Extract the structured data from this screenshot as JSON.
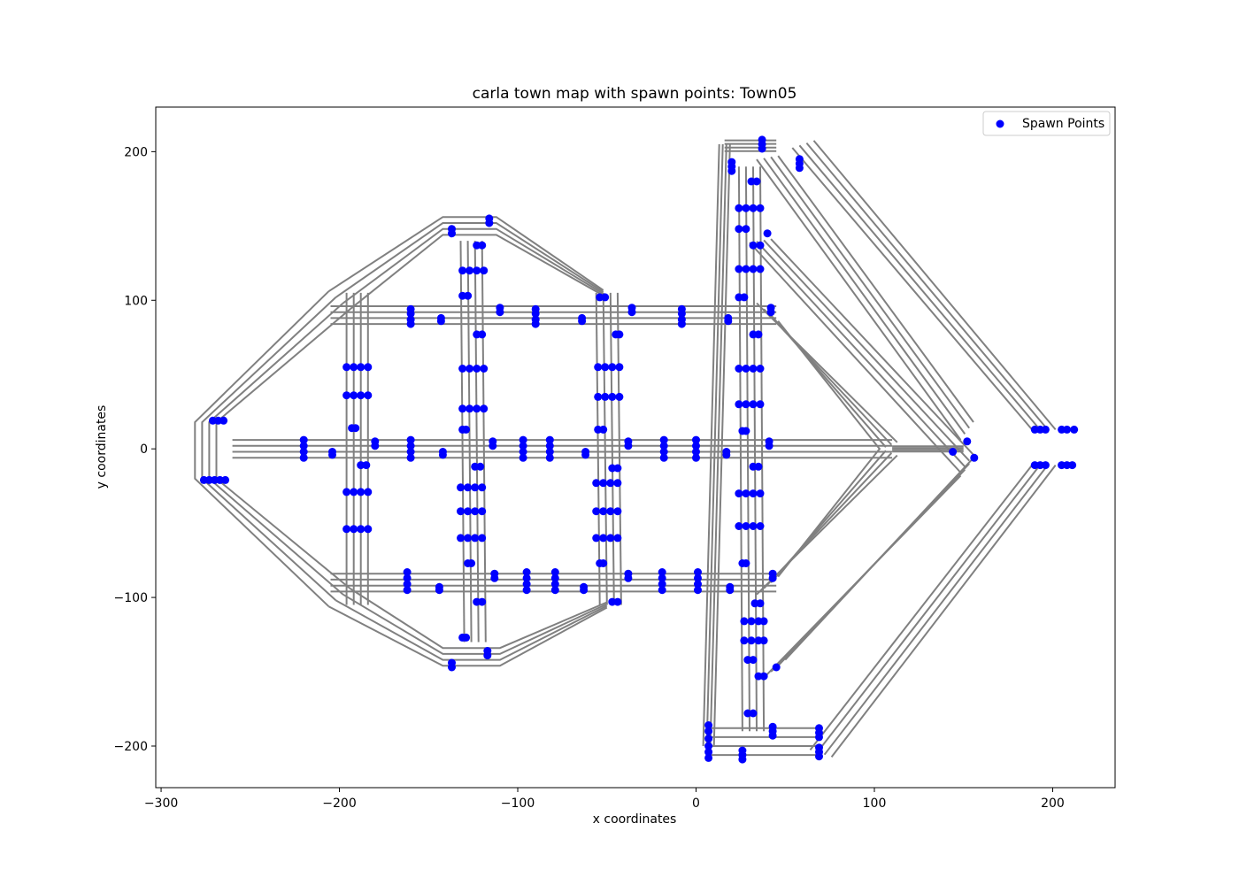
{
  "chart_data": {
    "type": "scatter",
    "title": "carla town map with spawn points: Town05",
    "xlabel": "x coordinates",
    "ylabel": "y coordinates",
    "xlim": [
      -303,
      235
    ],
    "ylim": [
      -228,
      230
    ],
    "xticks": [
      -300,
      -200,
      -100,
      0,
      100,
      200
    ],
    "yticks": [
      -200,
      -100,
      0,
      100,
      200
    ],
    "grid": false,
    "legend_position": "top-right",
    "colors": {
      "roads": "#808080",
      "spawn_points": "#0000ff"
    },
    "legend": [
      {
        "label": "Spawn Points",
        "color": "#0000ff",
        "marker": "circle"
      }
    ],
    "series": [
      {
        "name": "Spawn Points",
        "points": [
          [
            -271,
            19
          ],
          [
            -268,
            19
          ],
          [
            -265,
            19
          ],
          [
            -276,
            -21
          ],
          [
            -273,
            -21
          ],
          [
            -270,
            -21
          ],
          [
            -267,
            -21
          ],
          [
            -264,
            -21
          ],
          [
            -220,
            2
          ],
          [
            -220,
            6
          ],
          [
            -220,
            -2
          ],
          [
            -220,
            -6
          ],
          [
            -204,
            -2
          ],
          [
            -204,
            -4
          ],
          [
            -180,
            2
          ],
          [
            -180,
            5
          ],
          [
            -160,
            2
          ],
          [
            -160,
            6
          ],
          [
            -160,
            -2
          ],
          [
            -160,
            -6
          ],
          [
            -142,
            -2
          ],
          [
            -142,
            -4
          ],
          [
            -114,
            2
          ],
          [
            -114,
            5
          ],
          [
            -97,
            2
          ],
          [
            -97,
            6
          ],
          [
            -97,
            -2
          ],
          [
            -97,
            -6
          ],
          [
            -82,
            2
          ],
          [
            -82,
            6
          ],
          [
            -82,
            -2
          ],
          [
            -82,
            -6
          ],
          [
            -62,
            -2
          ],
          [
            -62,
            -4
          ],
          [
            -38,
            2
          ],
          [
            -38,
            5
          ],
          [
            -18,
            2
          ],
          [
            -18,
            6
          ],
          [
            -18,
            -2
          ],
          [
            -18,
            -6
          ],
          [
            0,
            2
          ],
          [
            0,
            6
          ],
          [
            0,
            -2
          ],
          [
            0,
            -6
          ],
          [
            17,
            -2
          ],
          [
            17,
            -4
          ],
          [
            41,
            2
          ],
          [
            41,
            5
          ],
          [
            144,
            -2
          ],
          [
            152,
            5
          ],
          [
            156,
            -6
          ],
          [
            -160,
            91
          ],
          [
            -160,
            87
          ],
          [
            -160,
            94
          ],
          [
            -160,
            84
          ],
          [
            -143,
            86
          ],
          [
            -143,
            88
          ],
          [
            -110,
            92
          ],
          [
            -110,
            95
          ],
          [
            -90,
            91
          ],
          [
            -90,
            87
          ],
          [
            -90,
            94
          ],
          [
            -90,
            84
          ],
          [
            -64,
            86
          ],
          [
            -64,
            88
          ],
          [
            -36,
            92
          ],
          [
            -36,
            95
          ],
          [
            -8,
            91
          ],
          [
            -8,
            87
          ],
          [
            -8,
            94
          ],
          [
            -8,
            84
          ],
          [
            18,
            86
          ],
          [
            18,
            88
          ],
          [
            42,
            92
          ],
          [
            42,
            95
          ],
          [
            -162,
            -87
          ],
          [
            -162,
            -91
          ],
          [
            -162,
            -95
          ],
          [
            -162,
            -83
          ],
          [
            -144,
            -93
          ],
          [
            -144,
            -95
          ],
          [
            -113,
            -87
          ],
          [
            -113,
            -84
          ],
          [
            -95,
            -87
          ],
          [
            -95,
            -91
          ],
          [
            -95,
            -95
          ],
          [
            -95,
            -83
          ],
          [
            -79,
            -87
          ],
          [
            -79,
            -91
          ],
          [
            -79,
            -95
          ],
          [
            -79,
            -83
          ],
          [
            -63,
            -93
          ],
          [
            -63,
            -95
          ],
          [
            -38,
            -87
          ],
          [
            -38,
            -84
          ],
          [
            -19,
            -87
          ],
          [
            -19,
            -91
          ],
          [
            -19,
            -95
          ],
          [
            -19,
            -83
          ],
          [
            1,
            -87
          ],
          [
            1,
            -91
          ],
          [
            1,
            -95
          ],
          [
            1,
            -83
          ],
          [
            19,
            -93
          ],
          [
            19,
            -95
          ],
          [
            43,
            -87
          ],
          [
            43,
            -84
          ],
          [
            -196,
            55
          ],
          [
            -192,
            55
          ],
          [
            -188,
            55
          ],
          [
            -184,
            55
          ],
          [
            -196,
            36
          ],
          [
            -192,
            36
          ],
          [
            -188,
            36
          ],
          [
            -184,
            36
          ],
          [
            -193,
            14
          ],
          [
            -191,
            14
          ],
          [
            -188,
            -11
          ],
          [
            -185,
            -11
          ],
          [
            -196,
            -29
          ],
          [
            -192,
            -29
          ],
          [
            -188,
            -29
          ],
          [
            -184,
            -29
          ],
          [
            -196,
            -54
          ],
          [
            -192,
            -54
          ],
          [
            -188,
            -54
          ],
          [
            -184,
            -54
          ],
          [
            -131,
            54
          ],
          [
            -127,
            54
          ],
          [
            -123,
            54
          ],
          [
            -119,
            54
          ],
          [
            -131,
            27
          ],
          [
            -127,
            27
          ],
          [
            -123,
            27
          ],
          [
            -119,
            27
          ],
          [
            -131,
            13
          ],
          [
            -129,
            13
          ],
          [
            -124,
            -12
          ],
          [
            -121,
            -12
          ],
          [
            -132,
            -26
          ],
          [
            -128,
            -26
          ],
          [
            -124,
            -26
          ],
          [
            -120,
            -26
          ],
          [
            -132,
            -42
          ],
          [
            -128,
            -42
          ],
          [
            -124,
            -42
          ],
          [
            -120,
            -42
          ],
          [
            -132,
            -60
          ],
          [
            -128,
            -60
          ],
          [
            -124,
            -60
          ],
          [
            -120,
            -60
          ],
          [
            -128,
            -77
          ],
          [
            -126,
            -77
          ],
          [
            -123,
            -103
          ],
          [
            -120,
            -103
          ],
          [
            -131,
            -127
          ],
          [
            -129,
            -127
          ],
          [
            -137,
            -144
          ],
          [
            -137,
            -147
          ],
          [
            -117,
            -136
          ],
          [
            -117,
            -139
          ],
          [
            -131,
            120
          ],
          [
            -127,
            120
          ],
          [
            -123,
            120
          ],
          [
            -119,
            120
          ],
          [
            -131,
            103
          ],
          [
            -128,
            103
          ],
          [
            -123,
            137
          ],
          [
            -120,
            137
          ],
          [
            -123,
            77
          ],
          [
            -120,
            77
          ],
          [
            -137,
            148
          ],
          [
            -137,
            145
          ],
          [
            -116,
            155
          ],
          [
            -116,
            152
          ],
          [
            -55,
            55
          ],
          [
            -51,
            55
          ],
          [
            -47,
            55
          ],
          [
            -43,
            55
          ],
          [
            -55,
            35
          ],
          [
            -51,
            35
          ],
          [
            -47,
            35
          ],
          [
            -43,
            35
          ],
          [
            -55,
            13
          ],
          [
            -52,
            13
          ],
          [
            -47,
            -13
          ],
          [
            -44,
            -13
          ],
          [
            -56,
            -23
          ],
          [
            -52,
            -23
          ],
          [
            -48,
            -23
          ],
          [
            -44,
            -23
          ],
          [
            -56,
            -42
          ],
          [
            -52,
            -42
          ],
          [
            -48,
            -42
          ],
          [
            -44,
            -42
          ],
          [
            -56,
            -60
          ],
          [
            -52,
            -60
          ],
          [
            -48,
            -60
          ],
          [
            -44,
            -60
          ],
          [
            -54,
            -77
          ],
          [
            -52,
            -77
          ],
          [
            -47,
            -103
          ],
          [
            -44,
            -103
          ],
          [
            -54,
            102
          ],
          [
            -51,
            102
          ],
          [
            -45,
            77
          ],
          [
            -43,
            77
          ],
          [
            24,
            162
          ],
          [
            28,
            162
          ],
          [
            32,
            162
          ],
          [
            36,
            162
          ],
          [
            24,
            148
          ],
          [
            28,
            148
          ],
          [
            32,
            137
          ],
          [
            36,
            137
          ],
          [
            24,
            121
          ],
          [
            28,
            121
          ],
          [
            32,
            121
          ],
          [
            36,
            121
          ],
          [
            24,
            102
          ],
          [
            27,
            102
          ],
          [
            32,
            77
          ],
          [
            35,
            77
          ],
          [
            24,
            54
          ],
          [
            28,
            54
          ],
          [
            32,
            54
          ],
          [
            36,
            54
          ],
          [
            24,
            30
          ],
          [
            28,
            30
          ],
          [
            32,
            30
          ],
          [
            36,
            30
          ],
          [
            26,
            12
          ],
          [
            28,
            12
          ],
          [
            32,
            -12
          ],
          [
            35,
            -12
          ],
          [
            24,
            -30
          ],
          [
            28,
            -30
          ],
          [
            32,
            -30
          ],
          [
            36,
            -30
          ],
          [
            24,
            -52
          ],
          [
            28,
            -52
          ],
          [
            32,
            -52
          ],
          [
            36,
            -52
          ],
          [
            26,
            -77
          ],
          [
            28,
            -77
          ],
          [
            33,
            -104
          ],
          [
            36,
            -104
          ],
          [
            27,
            -116
          ],
          [
            31,
            -116
          ],
          [
            35,
            -116
          ],
          [
            38,
            -116
          ],
          [
            27,
            -129
          ],
          [
            31,
            -129
          ],
          [
            35,
            -129
          ],
          [
            38,
            -129
          ],
          [
            29,
            -142
          ],
          [
            32,
            -142
          ],
          [
            35,
            -153
          ],
          [
            38,
            -153
          ],
          [
            29,
            -178
          ],
          [
            32,
            -178
          ],
          [
            45,
            -147
          ],
          [
            20,
            193
          ],
          [
            20,
            190
          ],
          [
            20,
            187
          ],
          [
            37,
            208
          ],
          [
            37,
            205
          ],
          [
            37,
            202
          ],
          [
            58,
            195
          ],
          [
            58,
            192
          ],
          [
            58,
            189
          ],
          [
            31,
            180
          ],
          [
            34,
            180
          ],
          [
            40,
            145
          ],
          [
            7,
            -186
          ],
          [
            7,
            -190
          ],
          [
            7,
            -195
          ],
          [
            7,
            -200
          ],
          [
            7,
            -204
          ],
          [
            7,
            -208
          ],
          [
            26,
            -203
          ],
          [
            26,
            -206
          ],
          [
            26,
            -209
          ],
          [
            43,
            -190
          ],
          [
            43,
            -193
          ],
          [
            43,
            -187
          ],
          [
            69,
            -188
          ],
          [
            69,
            -191
          ],
          [
            69,
            -194
          ],
          [
            69,
            -201
          ],
          [
            69,
            -204
          ],
          [
            69,
            -207
          ],
          [
            190,
            13
          ],
          [
            193,
            13
          ],
          [
            196,
            13
          ],
          [
            205,
            13
          ],
          [
            208,
            13
          ],
          [
            212,
            13
          ],
          [
            190,
            -11
          ],
          [
            193,
            -11
          ],
          [
            196,
            -11
          ],
          [
            205,
            -11
          ],
          [
            208,
            -11
          ],
          [
            211,
            -11
          ]
        ]
      }
    ]
  }
}
